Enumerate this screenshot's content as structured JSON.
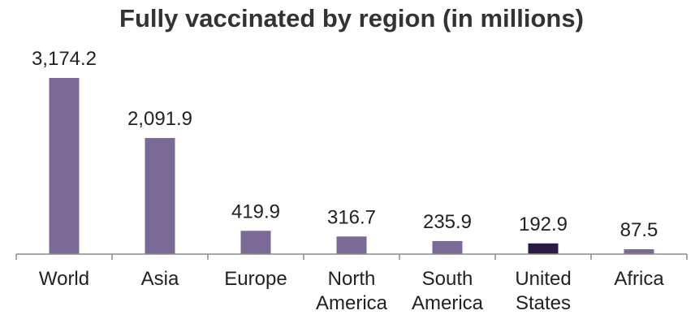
{
  "chart_data": {
    "type": "bar",
    "title": "Fully vaccinated by region (in millions)",
    "xlabel": "",
    "ylabel": "",
    "categories": [
      [
        "World"
      ],
      [
        "Asia"
      ],
      [
        "Europe"
      ],
      [
        "North",
        "America"
      ],
      [
        "South",
        "America"
      ],
      [
        "United",
        "States"
      ],
      [
        "Africa"
      ]
    ],
    "values": [
      3174.2,
      2091.9,
      419.9,
      316.7,
      235.9,
      192.9,
      87.5
    ],
    "value_labels": [
      "3,174.2",
      "2,091.9",
      "419.9",
      "316.7",
      "235.9",
      "192.9",
      "87.5"
    ],
    "ylim": [
      0,
      3174.2
    ],
    "grid": false,
    "legend": "none",
    "colors": {
      "bar": "#7b6a96",
      "highlight": "#2b1a44",
      "axis": "#8c8c8c",
      "text": "#222222",
      "title": "#333333"
    },
    "highlight_index": 5
  }
}
